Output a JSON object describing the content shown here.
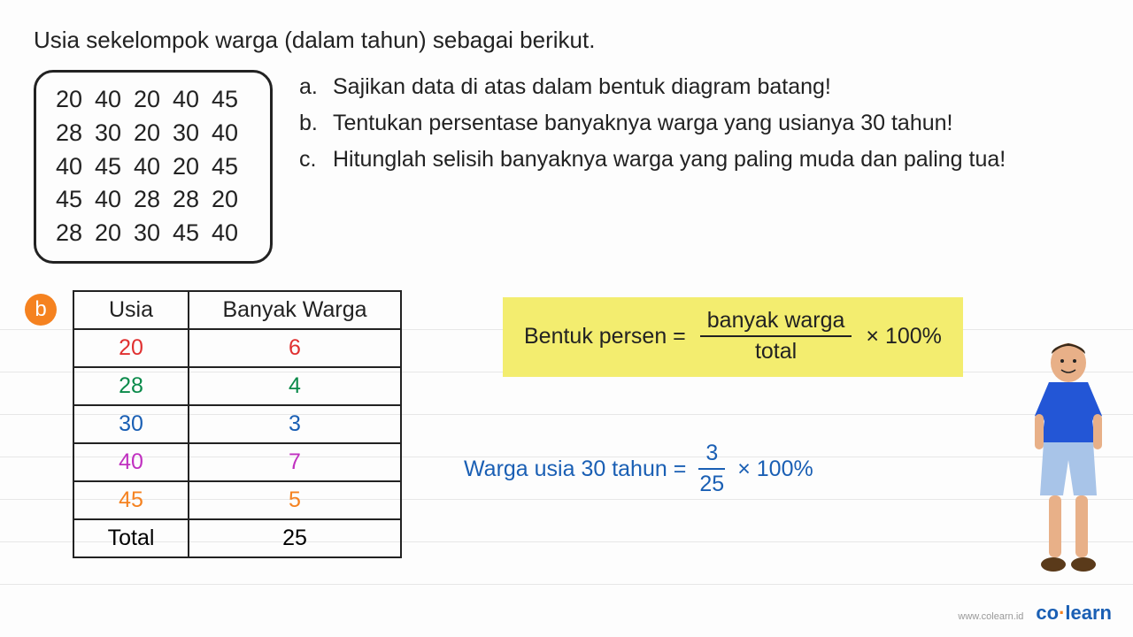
{
  "title": "Usia sekelompok warga (dalam tahun) sebagai berikut.",
  "raw_data": [
    [
      "20",
      "40",
      "20",
      "40",
      "45"
    ],
    [
      "28",
      "30",
      "20",
      "30",
      "40"
    ],
    [
      "40",
      "45",
      "40",
      "20",
      "45"
    ],
    [
      "45",
      "40",
      "28",
      "28",
      "20"
    ],
    [
      "28",
      "20",
      "30",
      "45",
      "40"
    ]
  ],
  "questions": {
    "a": "Sajikan data di atas dalam bentuk diagram batang!",
    "b": "Tentukan persentase banyaknya warga yang usianya 30 tahun!",
    "c": "Hitunglah selisih banyaknya warga yang paling muda dan paling tua!"
  },
  "badge_b": "b",
  "freq_table": {
    "headers": {
      "usia": "Usia",
      "banyak": "Banyak Warga"
    },
    "rows": [
      {
        "usia": "20",
        "banyak": "6",
        "color": "#e03030"
      },
      {
        "usia": "28",
        "banyak": "4",
        "color": "#0a8a4a"
      },
      {
        "usia": "30",
        "banyak": "3",
        "color": "#1a5fb4"
      },
      {
        "usia": "40",
        "banyak": "7",
        "color": "#c030c0"
      },
      {
        "usia": "45",
        "banyak": "5",
        "color": "#f58220"
      }
    ],
    "total_label": "Total",
    "total_value": "25"
  },
  "formula": {
    "lhs": "Bentuk persen =",
    "num": "banyak warga",
    "den": "total",
    "rhs": "× 100%",
    "bg": "#f3ed6f"
  },
  "calc": {
    "lhs": "Warga usia 30 tahun =",
    "num": "3",
    "den": "25",
    "rhs": "× 100%",
    "color": "#1a5fb4"
  },
  "footer": {
    "url": "www.colearn.id",
    "brand_co": "co",
    "brand_dot": "·",
    "brand_learn": "learn"
  },
  "character": {
    "shirt": "#2356d6",
    "shorts": "#a8c4e8",
    "skin": "#e8b088",
    "hair": "#3a2a1a"
  }
}
